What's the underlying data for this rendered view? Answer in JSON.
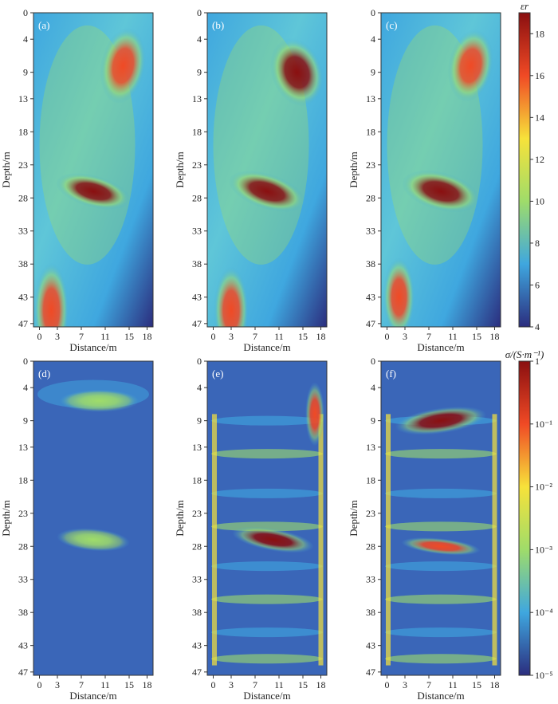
{
  "chart_data": [
    {
      "type": "heatmap",
      "panel": "(a)",
      "xlabel": "Distance/m",
      "ylabel": "Depth/m",
      "x_ticks": [
        "0",
        "3",
        "7",
        "11",
        "15",
        "18"
      ],
      "y_ticks": [
        "0",
        "4",
        "9",
        "13",
        "18",
        "23",
        "28",
        "33",
        "38",
        "43",
        "47"
      ],
      "xlim": [
        -1,
        19
      ],
      "ylim": [
        0,
        47.5
      ],
      "quantity": "relative permittivity",
      "blobs": [
        {
          "x": 14,
          "y": 8,
          "value": 17
        },
        {
          "x": 9,
          "y": 27,
          "value": 18.5
        },
        {
          "x": 2,
          "y": 45,
          "value": 17
        }
      ]
    },
    {
      "type": "heatmap",
      "panel": "(b)",
      "xlabel": "Distance/m",
      "ylabel": "Depth/m",
      "x_ticks": [
        "0",
        "3",
        "7",
        "11",
        "15",
        "18"
      ],
      "y_ticks": [
        "0",
        "4",
        "9",
        "13",
        "18",
        "23",
        "28",
        "33",
        "38",
        "43",
        "47"
      ],
      "xlim": [
        -1,
        19
      ],
      "ylim": [
        0,
        47.5
      ],
      "quantity": "relative permittivity",
      "blobs": [
        {
          "x": 14,
          "y": 9,
          "value": 17.5
        },
        {
          "x": 9,
          "y": 27,
          "value": 18
        },
        {
          "x": 3,
          "y": 45,
          "value": 17
        }
      ]
    },
    {
      "type": "heatmap",
      "panel": "(c)",
      "xlabel": "Distance/m",
      "ylabel": "Depth/m",
      "x_ticks": [
        "0",
        "3",
        "7",
        "11",
        "15",
        "18"
      ],
      "y_ticks": [
        "0",
        "4",
        "9",
        "13",
        "18",
        "23",
        "28",
        "33",
        "38",
        "43",
        "47"
      ],
      "xlim": [
        -1,
        19
      ],
      "ylim": [
        0,
        47.5
      ],
      "quantity": "relative permittivity",
      "blobs": [
        {
          "x": 14,
          "y": 8,
          "value": 17
        },
        {
          "x": 9,
          "y": 27,
          "value": 18.5
        },
        {
          "x": 2,
          "y": 43,
          "value": 17
        }
      ]
    },
    {
      "type": "heatmap",
      "panel": "(d)",
      "xlabel": "Distance/m",
      "ylabel": "Depth/m",
      "x_ticks": [
        "0",
        "3",
        "7",
        "11",
        "15",
        "18"
      ],
      "y_ticks": [
        "0",
        "4",
        "9",
        "13",
        "18",
        "23",
        "28",
        "33",
        "38",
        "43",
        "47"
      ],
      "xlim": [
        -1,
        19
      ],
      "ylim": [
        0,
        47.5
      ],
      "quantity": "conductivity",
      "blobs": [
        {
          "x": 9,
          "y": 27,
          "value": 0.0005
        },
        {
          "x": 10,
          "y": 6,
          "value": 0.0004
        }
      ]
    },
    {
      "type": "heatmap",
      "panel": "(e)",
      "xlabel": "Distance/m",
      "ylabel": "Depth/m",
      "x_ticks": [
        "0",
        "3",
        "7",
        "11",
        "15",
        "18"
      ],
      "y_ticks": [
        "0",
        "4",
        "9",
        "13",
        "18",
        "23",
        "28",
        "33",
        "38",
        "43",
        "47"
      ],
      "xlim": [
        -1,
        19
      ],
      "ylim": [
        0,
        47.5
      ],
      "quantity": "conductivity",
      "blobs": [
        {
          "x": 10,
          "y": 27,
          "value": 0.5
        },
        {
          "x": 17,
          "y": 8,
          "value": 0.3
        }
      ]
    },
    {
      "type": "heatmap",
      "panel": "(f)",
      "xlabel": "Distance/m",
      "ylabel": "Depth/m",
      "x_ticks": [
        "0",
        "3",
        "7",
        "11",
        "15",
        "18"
      ],
      "y_ticks": [
        "0",
        "4",
        "9",
        "13",
        "18",
        "23",
        "28",
        "33",
        "38",
        "43",
        "47"
      ],
      "xlim": [
        -1,
        19
      ],
      "ylim": [
        0,
        47.5
      ],
      "quantity": "conductivity",
      "blobs": [
        {
          "x": 9,
          "y": 9,
          "value": 0.6
        },
        {
          "x": 9,
          "y": 28,
          "value": 0.3
        }
      ]
    }
  ],
  "colorbars": [
    {
      "title": "εr",
      "ticks": [
        "18",
        "16",
        "14",
        "12",
        "10",
        "8",
        "6",
        "4"
      ],
      "range": [
        4,
        19
      ],
      "scale": "linear"
    },
    {
      "title": "σ/(S·m⁻¹)",
      "ticks": [
        "1",
        "10⁻¹",
        "10⁻²",
        "10⁻³",
        "10⁻⁴",
        "10⁻⁵"
      ],
      "range": [
        1e-05,
        1
      ],
      "scale": "log"
    }
  ],
  "colors": {
    "low": "#2b2d7e",
    "mid_low": "#3fa7df",
    "mid": "#9fdc6a",
    "mid_high": "#f7e23a",
    "high": "#f04a25",
    "max": "#8a0f10",
    "background_blue": "#3a66b8"
  }
}
